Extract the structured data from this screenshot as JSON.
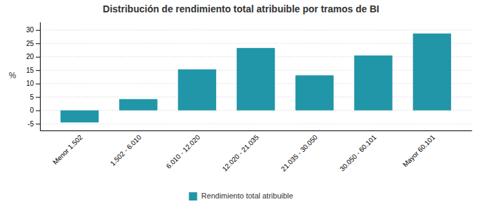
{
  "chart_data": {
    "type": "bar",
    "title": "Distribución de rendimiento total atribuible por tramos de BI",
    "categories": [
      "Menor 1.502",
      "1.502 - 6.010",
      "6.010 - 12.020",
      "12.020 - 21.035",
      "21.035 - 30.050",
      "30.050 - 60.101",
      "Mayor 60.101"
    ],
    "series": [
      {
        "name": "Rendimiento total atribuible",
        "color": "#2196a8",
        "values": [
          -4.5,
          4.2,
          15.3,
          23.3,
          13.1,
          20.5,
          28.7
        ]
      }
    ],
    "ylabel": "%",
    "ylim": [
      -7.5,
      33
    ],
    "yticks": [
      -5,
      0,
      5,
      10,
      15,
      20,
      25,
      30
    ],
    "grid": true,
    "legend": "bottom"
  }
}
